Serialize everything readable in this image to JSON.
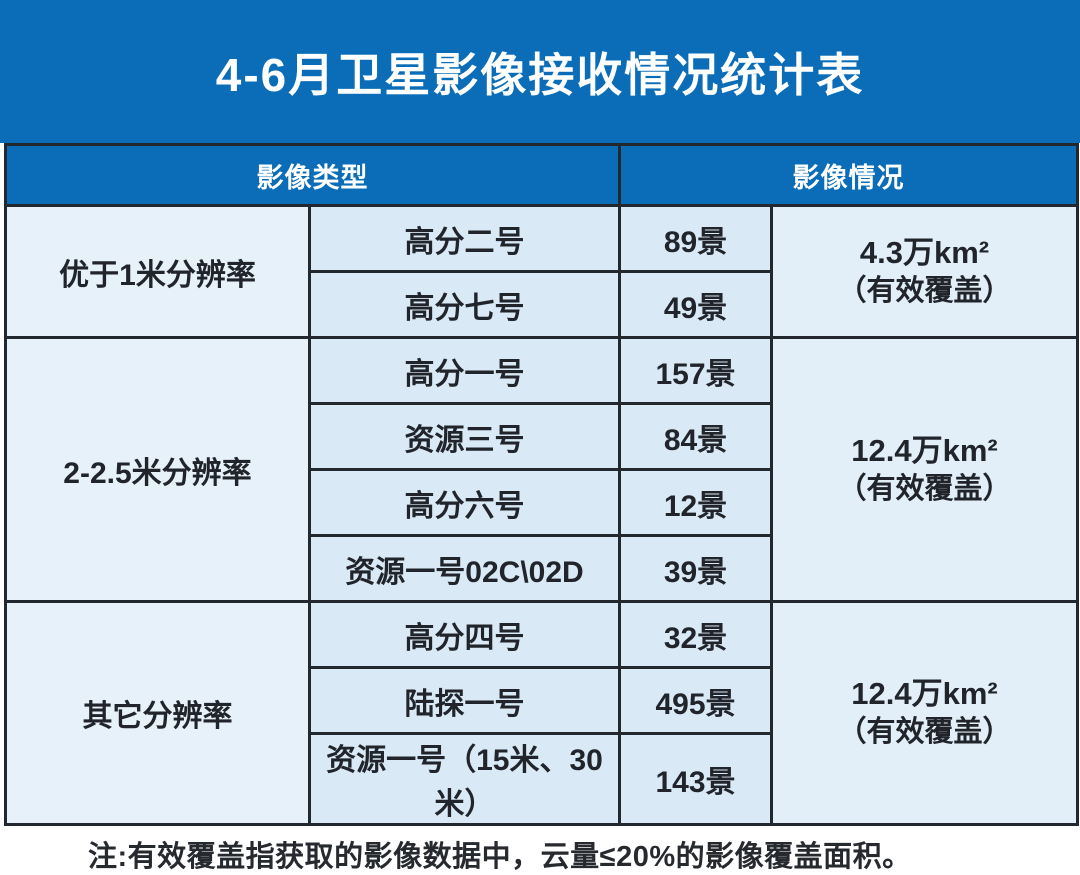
{
  "title": "4-6月卫星影像接收情况统计表",
  "colors": {
    "header_blue": "#0b6db7",
    "border_dark": "#23282f",
    "cell_blue": "#d9e9f6",
    "cell_blue_light": "#e6f1fa",
    "cell_blue_cov": "#e2eff9",
    "text_dark": "#21252b"
  },
  "table": {
    "col_headers": [
      "影像类型",
      "影像情况"
    ],
    "groups": [
      {
        "type_label": "优于1米分辨率",
        "rows": [
          {
            "satellite": "高分二号",
            "count": "89景"
          },
          {
            "satellite": "高分七号",
            "count": "49景"
          }
        ],
        "coverage_value": "4.3万km²",
        "coverage_note": "（有效覆盖）"
      },
      {
        "type_label": "2-2.5米分辨率",
        "rows": [
          {
            "satellite": "高分一号",
            "count": "157景"
          },
          {
            "satellite": "资源三号",
            "count": "84景"
          },
          {
            "satellite": "高分六号",
            "count": "12景"
          },
          {
            "satellite": "资源一号02C\\02D",
            "count": "39景"
          }
        ],
        "coverage_value": "12.4万km²",
        "coverage_note": "（有效覆盖）"
      },
      {
        "type_label": "其它分辨率",
        "rows": [
          {
            "satellite": "高分四号",
            "count": "32景"
          },
          {
            "satellite": "陆探一号",
            "count": "495景"
          },
          {
            "satellite": "资源一号（15米、30米）",
            "count": "143景"
          }
        ],
        "coverage_value": "12.4万km²",
        "coverage_note": "（有效覆盖）"
      }
    ]
  },
  "footnote": "注:有效覆盖指获取的影像数据中，云量≤20%的影像覆盖面积。"
}
